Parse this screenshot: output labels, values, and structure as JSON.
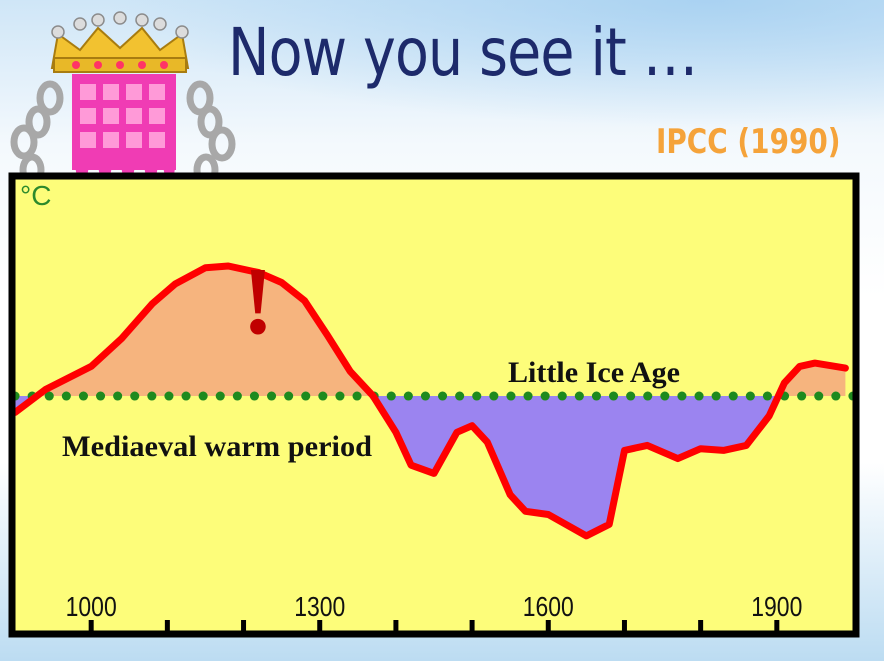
{
  "slide": {
    "title": "Now you see it …",
    "source": "IPCC (1990)"
  },
  "colors": {
    "title": "#1d2a6b",
    "source": "#f5a33a",
    "plot_background": "#fdfd7a",
    "curve": "#ff0000",
    "warm_fill": "#f6b47e",
    "cold_fill": "#9b84f0",
    "baseline": "#1e8a1e",
    "exclamation": "#c00000"
  },
  "icons": {
    "logo": "portcullis-crown-icon"
  },
  "chart_data": {
    "type": "line",
    "ylabel": "°C",
    "x_ticks": [
      1000,
      1300,
      1600,
      1900
    ],
    "xlim": [
      900,
      2000
    ],
    "ylim": [
      -1.3,
      1.1
    ],
    "baseline_y": 0,
    "grid": false,
    "annotations": {
      "warm": "Mediaeval warm period",
      "cold": "Little Ice Age",
      "exclamation": "!"
    },
    "x": [
      900,
      940,
      1000,
      1040,
      1080,
      1110,
      1150,
      1180,
      1220,
      1250,
      1280,
      1310,
      1340,
      1370,
      1400,
      1420,
      1450,
      1480,
      1500,
      1520,
      1550,
      1570,
      1600,
      1650,
      1680,
      1700,
      1730,
      1770,
      1800,
      1830,
      1860,
      1890,
      1910,
      1930,
      1950,
      1990
    ],
    "y": [
      -0.1,
      0.04,
      0.18,
      0.35,
      0.56,
      0.68,
      0.78,
      0.79,
      0.75,
      0.69,
      0.58,
      0.37,
      0.15,
      0.0,
      -0.22,
      -0.42,
      -0.47,
      -0.22,
      -0.18,
      -0.28,
      -0.6,
      -0.7,
      -0.72,
      -0.85,
      -0.78,
      -0.33,
      -0.3,
      -0.38,
      -0.32,
      -0.33,
      -0.3,
      -0.12,
      0.08,
      0.18,
      0.2,
      0.17
    ]
  }
}
